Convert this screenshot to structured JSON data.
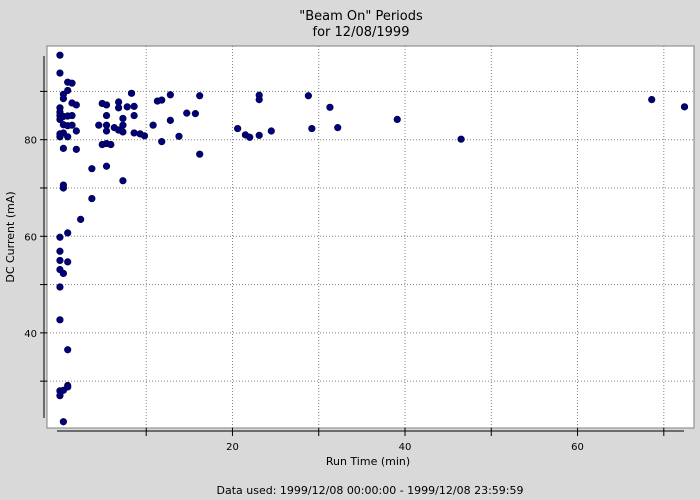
{
  "chart_data": {
    "type": "scatter",
    "title": "\"Beam On\" Periods",
    "subtitle": "for 12/08/1999",
    "xlabel": "Run Time (min)",
    "ylabel": "DC Current (mA)",
    "footer": "Data used: 1999/12/08 00:00:00 - 1999/12/08 23:59:59",
    "xlim": [
      -1.5,
      73.5
    ],
    "ylim": [
      20.3,
      99.4
    ],
    "x_ticks": [
      20,
      40,
      60
    ],
    "y_ticks": [
      40,
      60,
      80
    ],
    "x_grid": [
      10,
      20,
      30,
      40,
      50,
      60,
      70
    ],
    "y_grid": [
      30,
      40,
      50,
      60,
      70,
      80,
      90
    ],
    "grid": true,
    "marker_color": "#00007f",
    "plot_background": "#ffffff",
    "series": [
      {
        "points": [
          [
            0.0,
            97.5
          ],
          [
            0.0,
            93.8
          ],
          [
            0.0,
            86.6
          ],
          [
            0.0,
            85.7
          ],
          [
            0.0,
            85.0
          ],
          [
            0.0,
            84.2
          ],
          [
            0.0,
            81.2
          ],
          [
            0.0,
            80.6
          ],
          [
            0.0,
            59.8
          ],
          [
            0.0,
            56.9
          ],
          [
            0.0,
            55.0
          ],
          [
            0.0,
            53.1
          ],
          [
            0.0,
            49.5
          ],
          [
            0.0,
            42.7
          ],
          [
            0.0,
            28.0
          ],
          [
            0.0,
            27.0
          ],
          [
            0.4,
            89.4
          ],
          [
            0.4,
            88.5
          ],
          [
            0.4,
            84.8
          ],
          [
            0.4,
            83.1
          ],
          [
            0.4,
            81.4
          ],
          [
            0.4,
            78.2
          ],
          [
            0.4,
            70.6
          ],
          [
            0.4,
            70.0
          ],
          [
            0.4,
            52.3
          ],
          [
            0.4,
            28.1
          ],
          [
            0.4,
            21.6
          ],
          [
            0.9,
            91.9
          ],
          [
            0.9,
            90.2
          ],
          [
            0.9,
            84.9
          ],
          [
            0.9,
            82.9
          ],
          [
            0.9,
            80.6
          ],
          [
            0.9,
            60.7
          ],
          [
            0.9,
            54.7
          ],
          [
            0.9,
            36.5
          ],
          [
            0.9,
            29.1
          ],
          [
            0.9,
            28.8
          ],
          [
            1.4,
            91.7
          ],
          [
            1.4,
            87.6
          ],
          [
            1.4,
            85.0
          ],
          [
            1.4,
            83.0
          ],
          [
            1.9,
            87.2
          ],
          [
            1.9,
            81.8
          ],
          [
            1.9,
            78.0
          ],
          [
            2.4,
            63.5
          ],
          [
            3.7,
            74.0
          ],
          [
            3.7,
            67.8
          ],
          [
            4.5,
            83.0
          ],
          [
            4.9,
            87.5
          ],
          [
            4.9,
            79.0
          ],
          [
            5.4,
            87.2
          ],
          [
            5.4,
            85.0
          ],
          [
            5.4,
            83.0
          ],
          [
            5.4,
            81.8
          ],
          [
            5.4,
            79.2
          ],
          [
            5.4,
            74.5
          ],
          [
            5.9,
            79.0
          ],
          [
            6.3,
            82.5
          ],
          [
            6.8,
            87.8
          ],
          [
            6.8,
            86.6
          ],
          [
            6.8,
            82.0
          ],
          [
            7.3,
            84.4
          ],
          [
            7.3,
            83.0
          ],
          [
            7.3,
            81.6
          ],
          [
            7.3,
            71.5
          ],
          [
            7.8,
            86.8
          ],
          [
            8.3,
            89.6
          ],
          [
            8.6,
            85.0
          ],
          [
            8.6,
            81.4
          ],
          [
            8.6,
            86.9
          ],
          [
            9.3,
            81.2
          ],
          [
            9.8,
            80.8
          ],
          [
            10.8,
            83.0
          ],
          [
            11.3,
            88.0
          ],
          [
            11.8,
            79.6
          ],
          [
            11.8,
            88.2
          ],
          [
            12.8,
            89.3
          ],
          [
            12.8,
            84.0
          ],
          [
            13.8,
            80.7
          ],
          [
            14.7,
            85.5
          ],
          [
            15.7,
            85.4
          ],
          [
            16.2,
            89.1
          ],
          [
            16.2,
            77.0
          ],
          [
            20.6,
            82.3
          ],
          [
            21.5,
            81.0
          ],
          [
            22.0,
            80.5
          ],
          [
            23.1,
            89.2
          ],
          [
            23.1,
            88.3
          ],
          [
            23.1,
            80.9
          ],
          [
            24.5,
            81.8
          ],
          [
            28.8,
            89.1
          ],
          [
            29.2,
            82.3
          ],
          [
            31.3,
            86.7
          ],
          [
            32.2,
            82.5
          ],
          [
            39.1,
            84.2
          ],
          [
            46.5,
            80.1
          ],
          [
            68.6,
            88.3
          ],
          [
            72.4,
            86.8
          ]
        ]
      }
    ]
  }
}
